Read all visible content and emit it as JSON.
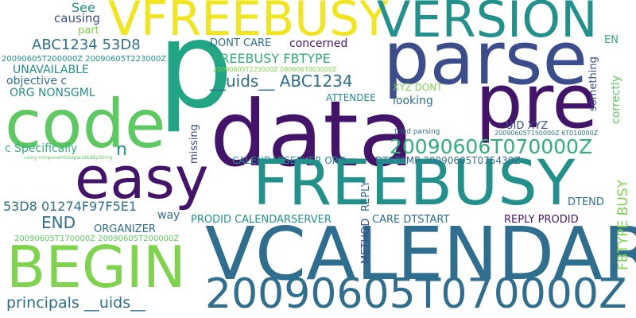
{
  "palette": {
    "purple": "#44136a",
    "indigo": "#3b4d8a",
    "blue": "#2f6e8e",
    "teal": "#22908b",
    "green": "#30b07a",
    "lime": "#7fd34e",
    "yellow": "#f1e51d"
  },
  "words": {
    "p": "p",
    "vfreebusy": "VFREEBUSY",
    "version": "VERSION",
    "parse": "parse",
    "pre": "pre",
    "code": "code",
    "data": "data",
    "easy": "easy",
    "freebusy": "FREEBUSY",
    "vcalendar": "VCALENDAR",
    "begin": "BEGIN",
    "date_070000": "20090605T070000Z",
    "date_060606": "20090606T070000Z",
    "see": "See",
    "causing": "causing",
    "part": "part",
    "abc_53d8": "ABC1234 53D8",
    "dates_small_left": "20090605T200000Z 20090605T223000Z",
    "unavailable": "UNAVAILABLE",
    "objective": "objective c",
    "org_nonsgml": "ORG NONSGML",
    "c_specifically": "c Specifically",
    "n": "n",
    "using_components": "using componentsSeparatedByString",
    "dont_care": "DONT CARE",
    "concerned": "concerned",
    "freebusy_fbtype": "FREEBUSY FBTYPE",
    "dates_small_mid": "20090605T223000Z 090606T003000Z",
    "uids_abc": "__uids__ ABC1234",
    "xyz_dont": "XYZ DONT",
    "attendee": "ATTENDEE",
    "looking": "looking",
    "missing": "missing",
    "en": "EN",
    "something": "something",
    "correctly": "correctly",
    "tried_parsing": "tried parsing",
    "uid_xyz": "UID XYZ",
    "dates_small_right": "20090605T150000Z 6T010000Z",
    "calendarserver_org": "CALENDARSERVER ORG",
    "dtstamp": "DTSTAMP 20090605T075430Z",
    "reply": "REPLY",
    "fbtype_busy": "FBTYPE BUSY",
    "dtend": "DTEND",
    "hex": "53D8 01274F97F5E1",
    "way": "way",
    "prodid_cal": "PRODID CALENDARSERVER",
    "care_dtstart": "CARE DTSTART",
    "reply_prodid": "REPLY PRODID",
    "end": "END",
    "organizer": "ORGANIZER",
    "dates_small_bottom": "20090605T170000Z 20090605T200000Z",
    "method": "METHOD",
    "principals_uids": "principals __uids__"
  }
}
